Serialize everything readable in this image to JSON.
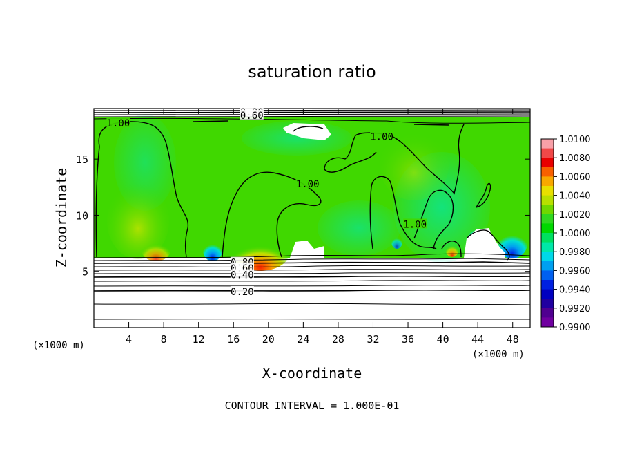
{
  "chart_data": {
    "type": "heatmap",
    "title": "saturation ratio",
    "xlabel": "X-coordinate",
    "ylabel": "Z-coordinate",
    "x_unit_left": "(×1000 m)",
    "x_unit_right": "(×1000 m)",
    "footer": "CONTOUR INTERVAL = 1.000E-01",
    "xlim": [
      0,
      50
    ],
    "ylim": [
      0,
      19.5
    ],
    "x_ticks": [
      4,
      8,
      12,
      16,
      20,
      24,
      28,
      32,
      36,
      40,
      44,
      48
    ],
    "y_ticks": [
      5,
      10,
      15
    ],
    "colorbar": {
      "min": 0.99,
      "max": 1.01,
      "tick_labels": [
        "1.0100",
        "1.0080",
        "1.0060",
        "1.0040",
        "1.0020",
        "1.0000",
        "0.9980",
        "0.9960",
        "0.9940",
        "0.9920",
        "0.9900"
      ],
      "colors": [
        "#f8a0a8",
        "#f04848",
        "#e80000",
        "#f86000",
        "#f8a800",
        "#e8e000",
        "#b8e000",
        "#70d800",
        "#30d820",
        "#00d800",
        "#00e060",
        "#00e8a8",
        "#00d8e8",
        "#00a0f0",
        "#0060f0",
        "#0020e0",
        "#0000c0",
        "#2000a0",
        "#500090",
        "#7000a0"
      ]
    },
    "contour_labels": [
      {
        "text": "0.80",
        "x": 18.1,
        "z": 19.2
      },
      {
        "text": "0.60",
        "x": 18.1,
        "z": 18.9
      },
      {
        "text": "1.00",
        "x": 2.8,
        "z": 18.2
      },
      {
        "text": "1.00",
        "x": 33.0,
        "z": 17.0
      },
      {
        "text": "1.00",
        "x": 24.5,
        "z": 12.8
      },
      {
        "text": "1.00",
        "x": 36.8,
        "z": 9.2
      },
      {
        "text": "0.80",
        "x": 17.0,
        "z": 5.8
      },
      {
        "text": "0.60",
        "x": 17.0,
        "z": 5.3
      },
      {
        "text": "0.40",
        "x": 17.0,
        "z": 4.7
      },
      {
        "text": "0.20",
        "x": 17.0,
        "z": 3.2
      }
    ]
  }
}
